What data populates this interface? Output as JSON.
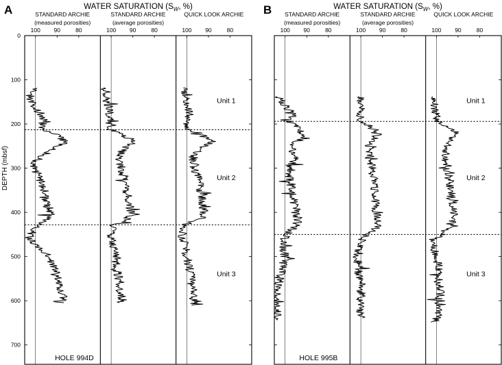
{
  "chart_data": [
    {
      "type": "line",
      "panel_letter": "A",
      "title": "WATER SATURATION (S",
      "title_sub": "W",
      "title_suffix": ", %)",
      "ylabel": "DEPTH (mbsf)",
      "ylim": [
        0,
        750
      ],
      "yticks": [
        "0",
        "100",
        "200",
        "300",
        "400",
        "500",
        "600",
        "700"
      ],
      "xticks": [
        "100",
        "90",
        "80"
      ],
      "xlim": [
        105,
        70
      ],
      "hole_label": "HOLE 994D",
      "columns": [
        {
          "title_line1": "STANDARD ARCHIE",
          "title_line2": "(measured porosities)"
        },
        {
          "title_line1": "STANDARD ARCHIE",
          "title_line2": "(average porosities)"
        },
        {
          "title_line1": "QUICK LOOK ARCHIE",
          "title_line2": ""
        }
      ],
      "unit_boundaries": [
        213,
        428
      ],
      "units": [
        {
          "label": "Unit 1",
          "depth": 148
        },
        {
          "label": "Unit 2",
          "depth": 322
        },
        {
          "label": "Unit 3",
          "depth": 540
        }
      ],
      "series": [
        {
          "depth_range": [
            118,
            605
          ],
          "points": [
            [
              118,
              99
            ],
            [
              130,
              102
            ],
            [
              145,
              103
            ],
            [
              160,
              101
            ],
            [
              175,
              98
            ],
            [
              190,
              96
            ],
            [
              205,
              97
            ],
            [
              213,
              97
            ],
            [
              220,
              92
            ],
            [
              232,
              88
            ],
            [
              240,
              86
            ],
            [
              250,
              90
            ],
            [
              262,
              93
            ],
            [
              275,
              98
            ],
            [
              290,
              101
            ],
            [
              305,
              100
            ],
            [
              320,
              98
            ],
            [
              335,
              97
            ],
            [
              350,
              96
            ],
            [
              365,
              96
            ],
            [
              380,
              95
            ],
            [
              395,
              94
            ],
            [
              408,
              93
            ],
            [
              420,
              96
            ],
            [
              428,
              99
            ],
            [
              440,
              101
            ],
            [
              455,
              103
            ],
            [
              470,
              101
            ],
            [
              485,
              97
            ],
            [
              500,
              94
            ],
            [
              520,
              92
            ],
            [
              540,
              90
            ],
            [
              560,
              89
            ],
            [
              580,
              88
            ],
            [
              595,
              87
            ],
            [
              605,
              89
            ]
          ]
        },
        {
          "depth_range": [
            118,
            605
          ],
          "points": [
            [
              118,
              103
            ],
            [
              130,
              102
            ],
            [
              145,
              102
            ],
            [
              160,
              101
            ],
            [
              175,
              101
            ],
            [
              190,
              100
            ],
            [
              205,
              101
            ],
            [
              213,
              100
            ],
            [
              220,
              96
            ],
            [
              232,
              92
            ],
            [
              240,
              89
            ],
            [
              250,
              93
            ],
            [
              262,
              95
            ],
            [
              275,
              96
            ],
            [
              290,
              96
            ],
            [
              305,
              95
            ],
            [
              320,
              94
            ],
            [
              335,
              93
            ],
            [
              350,
              93
            ],
            [
              365,
              92
            ],
            [
              380,
              92
            ],
            [
              395,
              91
            ],
            [
              408,
              91
            ],
            [
              420,
              94
            ],
            [
              428,
              99
            ],
            [
              440,
              100
            ],
            [
              455,
              100
            ],
            [
              470,
              99
            ],
            [
              485,
              99
            ],
            [
              500,
              98
            ],
            [
              520,
              98
            ],
            [
              540,
              97
            ],
            [
              560,
              96
            ],
            [
              580,
              96
            ],
            [
              595,
              95
            ],
            [
              605,
              95
            ]
          ]
        },
        {
          "depth_range": [
            118,
            612
          ],
          "points": [
            [
              118,
              101
            ],
            [
              130,
              101
            ],
            [
              145,
              100
            ],
            [
              160,
              100
            ],
            [
              175,
              99
            ],
            [
              190,
              99
            ],
            [
              205,
              100
            ],
            [
              213,
              99
            ],
            [
              220,
              95
            ],
            [
              232,
              91
            ],
            [
              240,
              88
            ],
            [
              250,
              92
            ],
            [
              262,
              95
            ],
            [
              275,
              97
            ],
            [
              290,
              97
            ],
            [
              305,
              96
            ],
            [
              320,
              95
            ],
            [
              335,
              94
            ],
            [
              350,
              94
            ],
            [
              365,
              93
            ],
            [
              380,
              93
            ],
            [
              395,
              92
            ],
            [
              408,
              92
            ],
            [
              420,
              95
            ],
            [
              428,
              101
            ],
            [
              440,
              102
            ],
            [
              455,
              102
            ],
            [
              470,
              101
            ],
            [
              485,
              100
            ],
            [
              500,
              100
            ],
            [
              520,
              99
            ],
            [
              540,
              98
            ],
            [
              560,
              98
            ],
            [
              580,
              97
            ],
            [
              595,
              97
            ],
            [
              612,
              97
            ]
          ]
        }
      ]
    },
    {
      "type": "line",
      "panel_letter": "B",
      "title": "WATER SATURATION (S",
      "title_sub": "W",
      "title_suffix": ", %)",
      "ylabel": "",
      "ylim": [
        0,
        750
      ],
      "xticks": [
        "100",
        "90",
        "80"
      ],
      "xlim": [
        105,
        70
      ],
      "hole_label": "HOLE 995B",
      "columns": [
        {
          "title_line1": "STANDARD ARCHIE",
          "title_line2": "(measured porosities)"
        },
        {
          "title_line1": "STANDARD ARCHIE",
          "title_line2": "(average porosities)"
        },
        {
          "title_line1": "QUICK LOOK ARCHIE",
          "title_line2": ""
        }
      ],
      "unit_boundaries": [
        194,
        450
      ],
      "units": [
        {
          "label": "Unit 1",
          "depth": 148
        },
        {
          "label": "Unit 2",
          "depth": 322
        },
        {
          "label": "Unit 3",
          "depth": 540
        }
      ],
      "series": [
        {
          "depth_range": [
            138,
            645
          ],
          "points": [
            [
              138,
              103
            ],
            [
              150,
              101
            ],
            [
              165,
              99
            ],
            [
              180,
              96
            ],
            [
              194,
              98
            ],
            [
              205,
              95
            ],
            [
              220,
              92
            ],
            [
              235,
              94
            ],
            [
              250,
              97
            ],
            [
              265,
              96
            ],
            [
              280,
              95
            ],
            [
              295,
              98
            ],
            [
              310,
              99
            ],
            [
              325,
              98
            ],
            [
              340,
              97
            ],
            [
              355,
              97
            ],
            [
              370,
              96
            ],
            [
              385,
              95
            ],
            [
              400,
              95
            ],
            [
              415,
              94
            ],
            [
              430,
              95
            ],
            [
              450,
              99
            ],
            [
              465,
              101
            ],
            [
              480,
              101
            ],
            [
              500,
              100
            ],
            [
              520,
              101
            ],
            [
              540,
              102
            ],
            [
              560,
              103
            ],
            [
              580,
              104
            ],
            [
              600,
              104
            ],
            [
              620,
              104
            ],
            [
              645,
              104
            ]
          ]
        },
        {
          "depth_range": [
            138,
            640
          ],
          "points": [
            [
              138,
              100
            ],
            [
              150,
              100
            ],
            [
              165,
              100
            ],
            [
              180,
              100
            ],
            [
              194,
              100
            ],
            [
              205,
              96
            ],
            [
              220,
              92
            ],
            [
              235,
              94
            ],
            [
              250,
              96
            ],
            [
              265,
              96
            ],
            [
              280,
              96
            ],
            [
              295,
              95
            ],
            [
              310,
              95
            ],
            [
              325,
              94
            ],
            [
              340,
              94
            ],
            [
              355,
              94
            ],
            [
              370,
              93
            ],
            [
              385,
              93
            ],
            [
              400,
              93
            ],
            [
              415,
              92
            ],
            [
              430,
              92
            ],
            [
              450,
              97
            ],
            [
              465,
              100
            ],
            [
              480,
              101
            ],
            [
              500,
              102
            ],
            [
              520,
              101
            ],
            [
              540,
              101
            ],
            [
              560,
              100
            ],
            [
              580,
              100
            ],
            [
              600,
              100
            ],
            [
              620,
              100
            ],
            [
              640,
              100
            ]
          ]
        },
        {
          "depth_range": [
            138,
            650
          ],
          "points": [
            [
              138,
              101
            ],
            [
              150,
              101
            ],
            [
              165,
              101
            ],
            [
              180,
              100
            ],
            [
              194,
              99
            ],
            [
              205,
              96
            ],
            [
              220,
              91
            ],
            [
              235,
              93
            ],
            [
              250,
              95
            ],
            [
              265,
              96
            ],
            [
              280,
              96
            ],
            [
              295,
              95
            ],
            [
              310,
              95
            ],
            [
              325,
              94
            ],
            [
              340,
              94
            ],
            [
              355,
              93
            ],
            [
              370,
              93
            ],
            [
              385,
              92
            ],
            [
              400,
              92
            ],
            [
              415,
              92
            ],
            [
              430,
              93
            ],
            [
              450,
              98
            ],
            [
              465,
              101
            ],
            [
              480,
              101
            ],
            [
              500,
              100
            ],
            [
              520,
              99
            ],
            [
              540,
              99
            ],
            [
              560,
              99
            ],
            [
              580,
              98
            ],
            [
              600,
              99
            ],
            [
              620,
              99
            ],
            [
              650,
              100
            ]
          ]
        }
      ]
    }
  ]
}
